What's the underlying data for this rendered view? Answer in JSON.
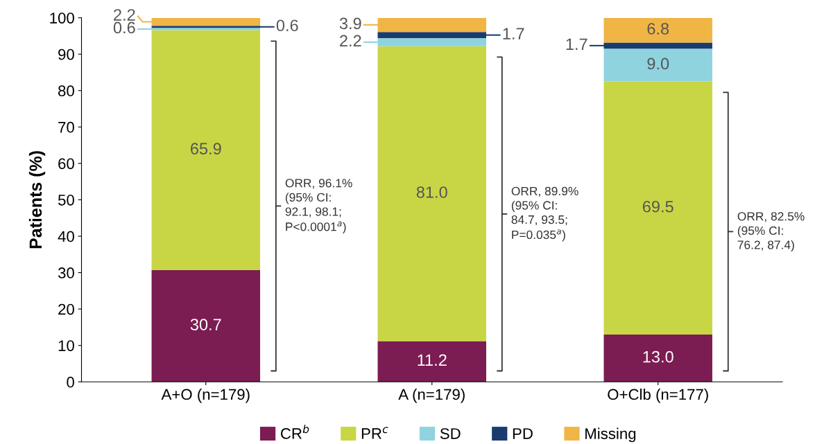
{
  "chart_data": {
    "type": "bar",
    "stacked": true,
    "ylabel": "Patients (%)",
    "categories": [
      "A+O (n=179)",
      "A (n=179)",
      "O+Clb (n=177)"
    ],
    "series": [
      {
        "name": "CR$^{b}$",
        "color": "#7b1c52",
        "values": [
          30.7,
          11.2,
          13.0
        ],
        "value_labels": [
          "30.7",
          "11.2",
          "13.0"
        ]
      },
      {
        "name": "PR$^{c}$",
        "color": "#c8d645",
        "values": [
          65.9,
          81.0,
          69.5
        ],
        "value_labels": [
          "65.9",
          "81.0",
          "69.5"
        ]
      },
      {
        "name": "SD",
        "color": "#8fd3df",
        "values": [
          0.6,
          2.2,
          9.0
        ],
        "value_labels": [
          "0.6",
          "2.2",
          "9.0"
        ]
      },
      {
        "name": "PD",
        "color": "#1a3b6e",
        "values": [
          0.6,
          1.7,
          1.7
        ],
        "value_labels": [
          "0.6",
          "1.7",
          "1.7"
        ]
      },
      {
        "name": "Missing",
        "color": "#f0b545",
        "values": [
          2.2,
          3.9,
          6.8
        ],
        "value_labels": [
          "2.2",
          "3.9",
          "6.8"
        ]
      }
    ],
    "ylim": [
      0,
      100
    ],
    "yticks": [
      0,
      10,
      20,
      30,
      40,
      50,
      60,
      70,
      80,
      90,
      100
    ],
    "grid": false,
    "legend": "bottom",
    "annotations": [
      "ORR, 96.1%\n(95% CI:\n92.1, 98.1;\nP<0.0001$^{a}$)",
      "ORR, 89.9%\n(95% CI:\n84.7, 93.5;\nP=0.035$^{a}$)",
      "ORR, 82.5%\n(95% CI:\n76.2, 87.4)"
    ]
  }
}
